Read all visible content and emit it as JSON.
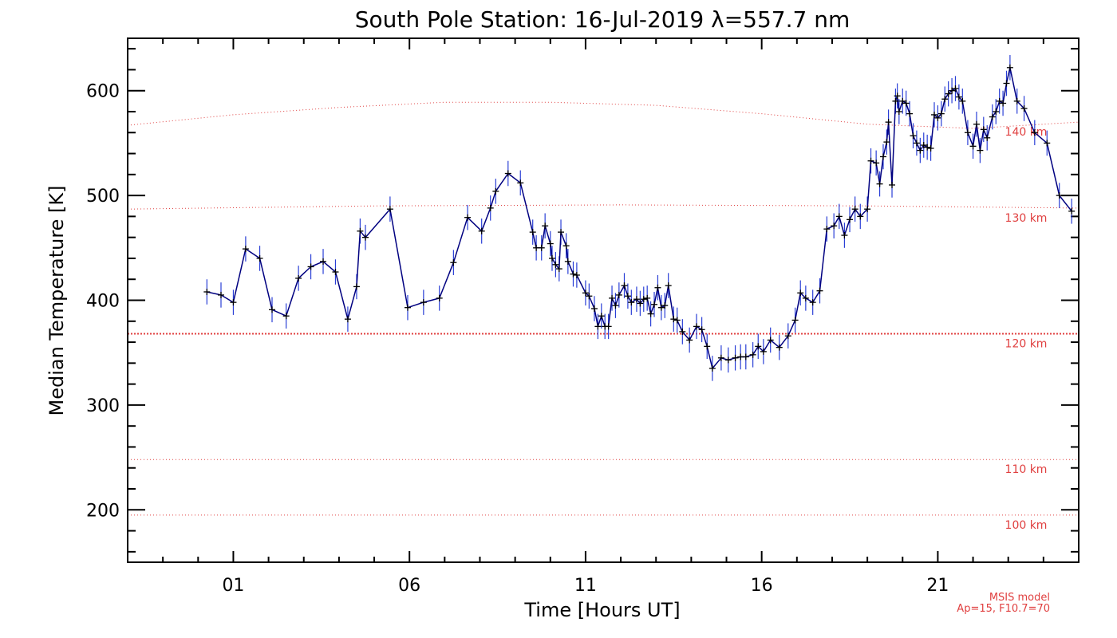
{
  "chart_data": {
    "type": "line",
    "title": "South Pole Station: 16-Jul-2019 λ=557.7 nm",
    "xlabel": "Time [Hours UT]",
    "ylabel": "Median Temperature [K]",
    "xlim": [
      -2,
      25
    ],
    "ylim": [
      150,
      650
    ],
    "x_ticks": [
      1,
      6,
      11,
      16,
      21
    ],
    "x_tick_labels": [
      "01",
      "06",
      "11",
      "16",
      "21"
    ],
    "y_ticks": [
      200,
      300,
      400,
      500,
      600
    ],
    "y_tick_labels": [
      "200",
      "300",
      "400",
      "500",
      "600"
    ],
    "grid": false,
    "series": [
      {
        "color": "#000080",
        "errorbar_color": "#2a3fd6",
        "x": [
          0.25,
          0.65,
          1.0,
          1.35,
          1.75,
          2.1,
          2.5,
          2.85,
          3.2,
          3.55,
          3.9,
          4.25,
          4.5,
          4.6,
          4.75,
          5.45,
          5.95,
          6.4,
          6.85,
          7.25,
          7.65,
          8.05,
          8.3,
          8.45,
          8.8,
          9.15,
          9.5,
          9.6,
          9.75,
          9.85,
          10.0,
          10.05,
          10.15,
          10.25,
          10.3,
          10.45,
          10.5,
          10.65,
          10.75,
          11.0,
          11.1,
          11.25,
          11.35,
          11.45,
          11.55,
          11.65,
          11.75,
          11.85,
          11.95,
          12.1,
          12.2,
          12.3,
          12.45,
          12.55,
          12.65,
          12.75,
          12.85,
          12.95,
          13.05,
          13.15,
          13.25,
          13.35,
          13.5,
          13.6,
          13.75,
          13.95,
          14.15,
          14.3,
          14.45,
          14.6,
          14.85,
          15.05,
          15.25,
          15.4,
          15.55,
          15.75,
          15.9,
          16.05,
          16.25,
          16.5,
          16.75,
          16.95,
          17.1,
          17.25,
          17.45,
          17.65,
          17.85,
          18.05,
          18.2,
          18.35,
          18.5,
          18.65,
          18.8,
          19.0,
          19.1,
          19.25,
          19.35,
          19.45,
          19.55,
          19.6,
          19.7,
          19.8,
          19.85,
          19.9,
          20.0,
          20.1,
          20.2,
          20.3,
          20.4,
          20.5,
          20.6,
          20.7,
          20.8,
          20.9,
          21.0,
          21.1,
          21.2,
          21.3,
          21.4,
          21.5,
          21.6,
          21.7,
          21.85,
          22.0,
          22.1,
          22.2,
          22.3,
          22.4,
          22.55,
          22.65,
          22.75,
          22.85,
          22.95,
          23.05,
          23.25,
          23.45,
          23.75,
          24.1,
          24.45,
          24.8
        ],
        "y": [
          408,
          405,
          398,
          449,
          440,
          391,
          385,
          421,
          432,
          437,
          427,
          382,
          413,
          466,
          460,
          487,
          393,
          398,
          402,
          436,
          479,
          466,
          488,
          504,
          521,
          512,
          465,
          450,
          450,
          471,
          454,
          440,
          434,
          430,
          465,
          452,
          437,
          425,
          424,
          407,
          404,
          392,
          375,
          385,
          375,
          375,
          402,
          395,
          405,
          414,
          404,
          398,
          401,
          397,
          401,
          402,
          387,
          396,
          412,
          393,
          395,
          414,
          382,
          381,
          370,
          362,
          375,
          372,
          356,
          335,
          345,
          343,
          345,
          346,
          346,
          348,
          356,
          351,
          362,
          355,
          366,
          381,
          407,
          402,
          398,
          409,
          468,
          471,
          480,
          462,
          477,
          487,
          480,
          487,
          533,
          531,
          511,
          537,
          551,
          570,
          510,
          590,
          595,
          580,
          590,
          588,
          578,
          557,
          550,
          543,
          548,
          546,
          545,
          577,
          574,
          578,
          592,
          597,
          600,
          602,
          594,
          590,
          560,
          547,
          568,
          543,
          563,
          555,
          575,
          580,
          590,
          588,
          607,
          622,
          590,
          583,
          560,
          550,
          500,
          485
        ]
      }
    ],
    "reference_lines": [
      {
        "label": "140 km",
        "color": "#e04040",
        "style": "dotted",
        "x": [
          -2,
          1,
          4,
          7,
          10,
          13,
          16,
          19,
          22,
          25
        ],
        "y": [
          567,
          577,
          584,
          589,
          589,
          586,
          578,
          568,
          564,
          570
        ]
      },
      {
        "label": "130 km",
        "color": "#e04040",
        "style": "dotted",
        "x": [
          -2,
          5,
          12,
          19,
          25
        ],
        "y": [
          487,
          490,
          491,
          490,
          488
        ]
      },
      {
        "label": "120 km",
        "color": "#e04040",
        "style": "dotted-dense",
        "x": [
          -2,
          25
        ],
        "y": [
          368,
          368
        ]
      },
      {
        "label": "110 km",
        "color": "#e04040",
        "style": "dotted",
        "x": [
          -2,
          25
        ],
        "y": [
          248,
          248
        ]
      },
      {
        "label": "100 km",
        "color": "#e04040",
        "style": "dotted",
        "x": [
          -2,
          25
        ],
        "y": [
          195,
          195
        ]
      }
    ],
    "annotations": [
      "MSIS model",
      "Ap=15, F10.7=70"
    ]
  }
}
